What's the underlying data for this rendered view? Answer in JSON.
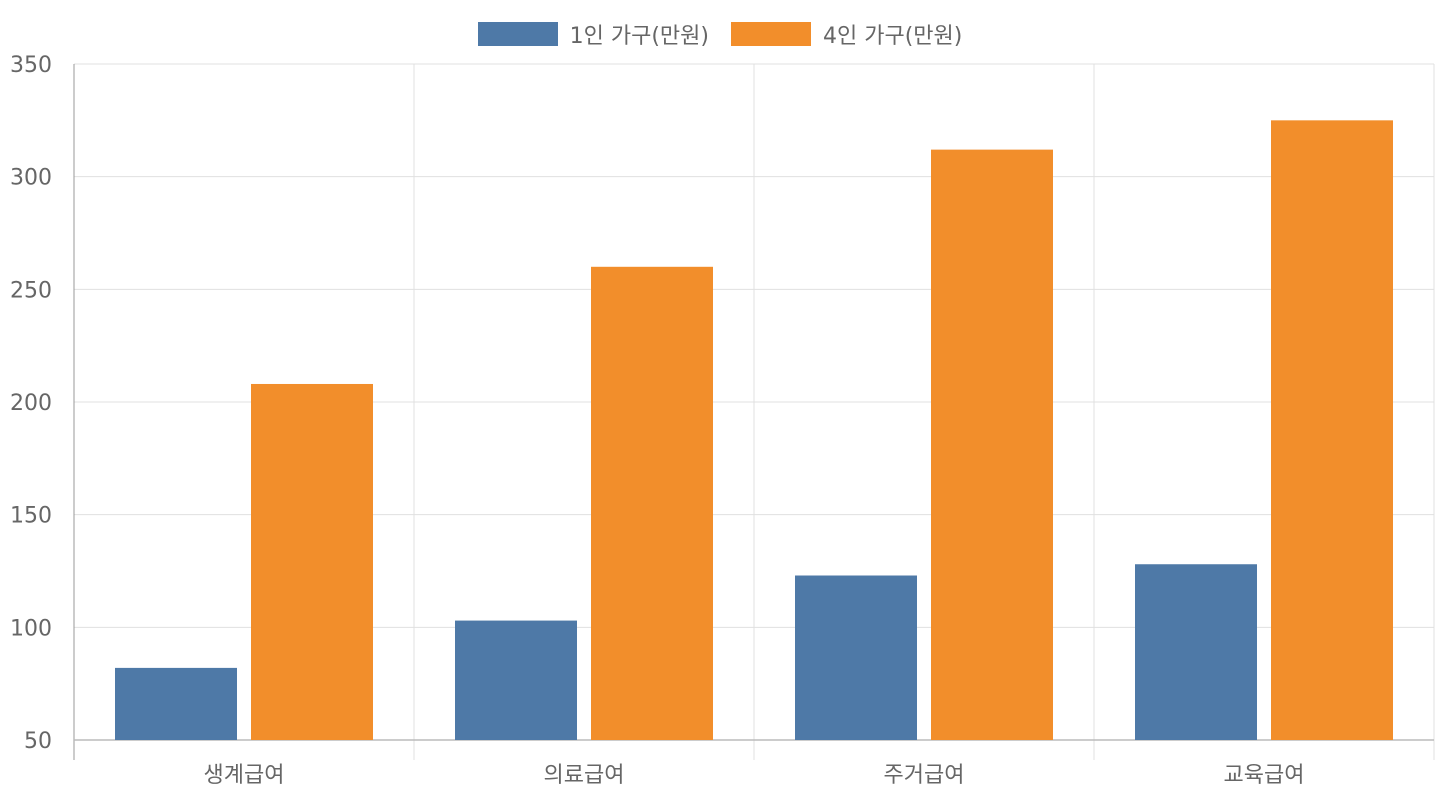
{
  "chart_data": {
    "type": "bar",
    "title": "",
    "xlabel": "",
    "ylabel": "",
    "categories": [
      "생계급여",
      "의료급여",
      "주거급여",
      "교육급여"
    ],
    "series": [
      {
        "name": "1인 가구(만원)",
        "color": "#4e79a7",
        "values": [
          82,
          103,
          123,
          128
        ]
      },
      {
        "name": "4인 가구(만원)",
        "color": "#f28e2b",
        "values": [
          208,
          260,
          312,
          325
        ]
      }
    ],
    "ylim": [
      50,
      350
    ],
    "yticks": [
      50,
      100,
      150,
      200,
      250,
      300,
      350
    ],
    "grid": true,
    "legend_position": "top-center"
  }
}
